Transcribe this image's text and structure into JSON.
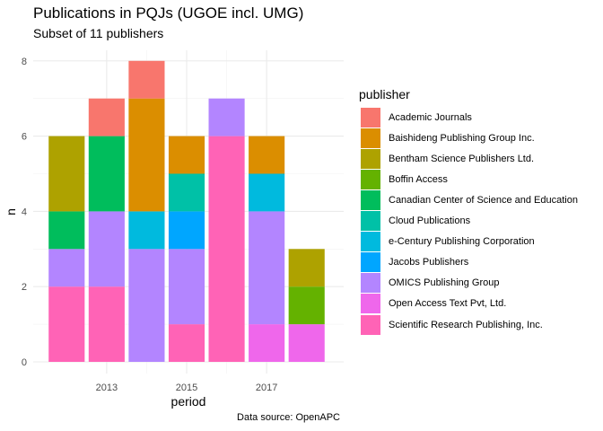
{
  "chart_data": {
    "type": "bar",
    "stacked": true,
    "title": "Publications in PQJs (UGOE incl. UMG)",
    "subtitle": "Subset of 11 publishers",
    "xlabel": "period",
    "ylabel": "n",
    "caption": "Data source: OpenAPC",
    "categories": [
      "2012",
      "2013",
      "2014",
      "2015",
      "2016",
      "2017",
      "2018"
    ],
    "x_tick_labels": [
      "2013",
      "2015",
      "2017"
    ],
    "y_tick_labels": [
      "0",
      "2",
      "4",
      "6",
      "8"
    ],
    "ylim": [
      0,
      8.3
    ],
    "grid": true,
    "legend_position": "right",
    "legend_title": "publisher",
    "series": [
      {
        "name": "Academic Journals",
        "color": "#F8766D",
        "values": [
          0,
          1,
          1,
          0,
          0,
          0,
          0
        ]
      },
      {
        "name": "Baishideng Publishing Group Inc.",
        "color": "#DB8E00",
        "values": [
          0,
          0,
          3,
          1,
          0,
          1,
          0
        ]
      },
      {
        "name": "Bentham Science Publishers Ltd.",
        "color": "#AEA200",
        "values": [
          2,
          0,
          0,
          0,
          0,
          0,
          1
        ]
      },
      {
        "name": "Boffin Access",
        "color": "#64B200",
        "values": [
          0,
          0,
          0,
          0,
          0,
          0,
          1
        ]
      },
      {
        "name": "Canadian Center of Science and Education",
        "color": "#00BD5C",
        "values": [
          1,
          2,
          0,
          0,
          0,
          0,
          0
        ]
      },
      {
        "name": "Cloud Publications",
        "color": "#00C1A7",
        "values": [
          0,
          0,
          0,
          1,
          0,
          0,
          0
        ]
      },
      {
        "name": "e-Century Publishing Corporation",
        "color": "#00BADE",
        "values": [
          0,
          0,
          1,
          0,
          0,
          1,
          0
        ]
      },
      {
        "name": "Jacobs Publishers",
        "color": "#00A6FF",
        "values": [
          0,
          0,
          0,
          1,
          0,
          0,
          0
        ]
      },
      {
        "name": "OMICS Publishing Group",
        "color": "#B385FF",
        "values": [
          1,
          2,
          3,
          2,
          1,
          3,
          0
        ]
      },
      {
        "name": "Open Access Text Pvt, Ltd.",
        "color": "#EF67EB",
        "values": [
          0,
          0,
          0,
          0,
          0,
          1,
          1
        ]
      },
      {
        "name": "Scientific Research Publishing, Inc.",
        "color": "#FF63B6",
        "values": [
          2,
          2,
          0,
          1,
          6,
          0,
          0
        ]
      }
    ]
  }
}
